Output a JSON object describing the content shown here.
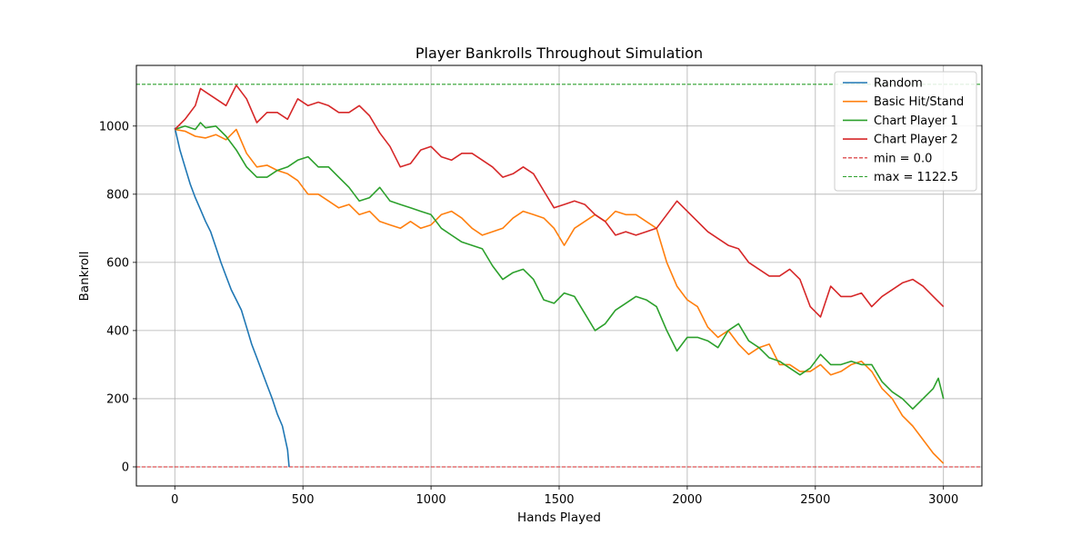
{
  "chart_data": {
    "type": "line",
    "title": "Player Bankrolls Throughout Simulation",
    "xlabel": "Hands Played",
    "ylabel": "Bankroll",
    "xlim": [
      -150,
      3150
    ],
    "ylim": [
      -56,
      1178
    ],
    "xticks": [
      0,
      500,
      1000,
      1500,
      2000,
      2500,
      3000
    ],
    "yticks": [
      0,
      200,
      400,
      600,
      800,
      1000
    ],
    "grid": true,
    "legend_position": "top-right",
    "series": [
      {
        "name": "Random",
        "color": "#1f77b4",
        "x": [
          0,
          20,
          40,
          60,
          80,
          100,
          120,
          140,
          160,
          180,
          200,
          220,
          240,
          260,
          280,
          300,
          320,
          340,
          360,
          380,
          400,
          420,
          440,
          446
        ],
        "y": [
          995,
          930,
          880,
          830,
          790,
          755,
          720,
          690,
          645,
          600,
          560,
          520,
          490,
          460,
          410,
          360,
          320,
          280,
          240,
          200,
          155,
          120,
          50,
          0
        ]
      },
      {
        "name": "Basic Hit/Stand",
        "color": "#ff7f0e",
        "x": [
          0,
          40,
          80,
          120,
          160,
          200,
          240,
          280,
          320,
          360,
          400,
          440,
          480,
          520,
          560,
          600,
          640,
          680,
          720,
          760,
          800,
          840,
          880,
          920,
          960,
          1000,
          1040,
          1080,
          1120,
          1160,
          1200,
          1240,
          1280,
          1320,
          1360,
          1400,
          1440,
          1480,
          1520,
          1560,
          1600,
          1640,
          1680,
          1720,
          1760,
          1800,
          1840,
          1880,
          1920,
          1960,
          2000,
          2040,
          2080,
          2120,
          2160,
          2200,
          2240,
          2280,
          2320,
          2360,
          2400,
          2440,
          2480,
          2520,
          2560,
          2600,
          2640,
          2680,
          2720,
          2760,
          2800,
          2840,
          2880,
          2920,
          2960,
          3000
        ],
        "y": [
          990,
          985,
          970,
          965,
          975,
          960,
          990,
          920,
          880,
          885,
          870,
          860,
          840,
          800,
          800,
          780,
          760,
          770,
          740,
          750,
          720,
          710,
          700,
          720,
          700,
          710,
          740,
          750,
          730,
          700,
          680,
          690,
          700,
          730,
          750,
          740,
          730,
          700,
          650,
          700,
          720,
          740,
          720,
          750,
          740,
          740,
          720,
          700,
          600,
          530,
          490,
          470,
          410,
          380,
          400,
          360,
          330,
          350,
          360,
          300,
          300,
          280,
          280,
          300,
          270,
          280,
          300,
          310,
          280,
          230,
          200,
          150,
          120,
          80,
          40,
          10
        ]
      },
      {
        "name": "Chart Player 1",
        "color": "#2ca02c",
        "x": [
          0,
          40,
          80,
          100,
          120,
          160,
          200,
          240,
          280,
          320,
          360,
          400,
          440,
          480,
          520,
          560,
          600,
          640,
          680,
          720,
          760,
          800,
          840,
          880,
          920,
          960,
          1000,
          1040,
          1080,
          1120,
          1160,
          1200,
          1240,
          1280,
          1320,
          1360,
          1400,
          1440,
          1480,
          1520,
          1560,
          1600,
          1640,
          1680,
          1720,
          1760,
          1800,
          1840,
          1880,
          1920,
          1960,
          2000,
          2040,
          2080,
          2120,
          2160,
          2200,
          2240,
          2280,
          2320,
          2360,
          2400,
          2440,
          2480,
          2520,
          2560,
          2600,
          2640,
          2680,
          2720,
          2760,
          2800,
          2840,
          2880,
          2920,
          2960,
          2980,
          3000
        ],
        "y": [
          990,
          1000,
          990,
          1010,
          995,
          1000,
          970,
          930,
          880,
          850,
          850,
          870,
          880,
          900,
          910,
          880,
          880,
          850,
          820,
          780,
          790,
          820,
          780,
          770,
          760,
          750,
          740,
          700,
          680,
          660,
          650,
          640,
          590,
          550,
          570,
          580,
          550,
          490,
          480,
          510,
          500,
          450,
          400,
          420,
          460,
          480,
          500,
          490,
          470,
          400,
          340,
          380,
          380,
          370,
          350,
          400,
          420,
          370,
          350,
          320,
          310,
          290,
          270,
          290,
          330,
          300,
          300,
          310,
          300,
          300,
          250,
          220,
          200,
          170,
          200,
          230,
          260,
          200
        ]
      },
      {
        "name": "Chart Player 2",
        "color": "#d62728",
        "x": [
          0,
          40,
          80,
          100,
          120,
          160,
          200,
          240,
          280,
          320,
          360,
          400,
          440,
          480,
          520,
          560,
          600,
          640,
          680,
          720,
          760,
          800,
          840,
          880,
          920,
          960,
          1000,
          1040,
          1080,
          1120,
          1160,
          1200,
          1240,
          1280,
          1320,
          1360,
          1400,
          1440,
          1480,
          1520,
          1560,
          1600,
          1640,
          1680,
          1720,
          1760,
          1800,
          1840,
          1880,
          1920,
          1960,
          2000,
          2040,
          2080,
          2120,
          2160,
          2200,
          2240,
          2280,
          2320,
          2360,
          2400,
          2440,
          2480,
          2520,
          2560,
          2600,
          2640,
          2680,
          2720,
          2760,
          2800,
          2840,
          2880,
          2920,
          2960,
          3000
        ],
        "y": [
          990,
          1020,
          1060,
          1110,
          1100,
          1080,
          1060,
          1120,
          1080,
          1010,
          1040,
          1040,
          1020,
          1080,
          1060,
          1070,
          1060,
          1040,
          1040,
          1060,
          1030,
          980,
          940,
          880,
          890,
          930,
          940,
          910,
          900,
          920,
          920,
          900,
          880,
          850,
          860,
          880,
          860,
          810,
          760,
          770,
          780,
          770,
          740,
          720,
          680,
          690,
          680,
          690,
          700,
          740,
          780,
          750,
          720,
          690,
          670,
          650,
          640,
          600,
          580,
          560,
          560,
          580,
          550,
          470,
          440,
          530,
          500,
          500,
          510,
          470,
          500,
          520,
          540,
          550,
          530,
          500,
          470
        ]
      }
    ],
    "reference_lines": [
      {
        "label": "min = 0.0",
        "y": 0.0,
        "color": "#d62728",
        "style": "dashed"
      },
      {
        "label": "max = 1122.5",
        "y": 1122.5,
        "color": "#2ca02c",
        "style": "dashed"
      }
    ]
  }
}
